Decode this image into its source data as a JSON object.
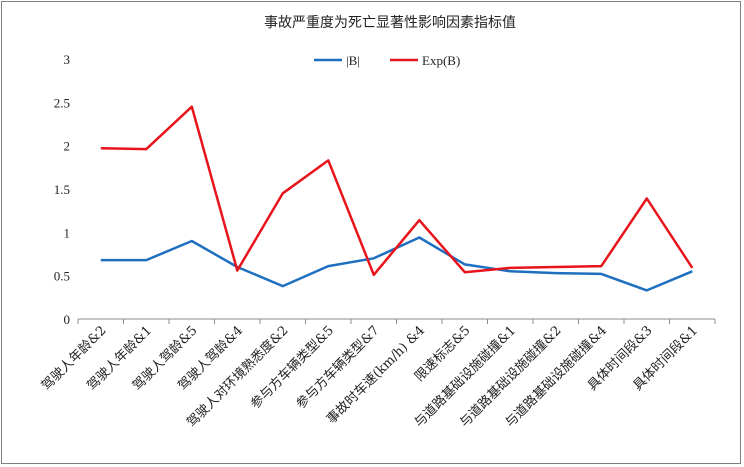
{
  "chart_data": {
    "type": "line",
    "title": "事故严重度为死亡显著性影响因素指标值",
    "categories": [
      "驾驶人年龄&2",
      "驾驶人年龄&1",
      "驾驶人驾龄&5",
      "驾驶人驾龄&4",
      "驾驶人对环境熟悉度&2",
      "参与方车辆类型&5",
      "参与方车辆类型&7",
      "事故时车速(km/h) &4",
      "限速标志&5",
      "与道路基础设施碰撞&1",
      "与道路基础设施碰撞&2",
      "与道路基础设施碰撞&4",
      "具体时间段&3",
      "具体时间段&1"
    ],
    "series": [
      {
        "name": "|B|",
        "color": "#1f6fc0",
        "values": [
          0.68,
          0.68,
          0.9,
          0.6,
          0.38,
          0.61,
          0.7,
          0.94,
          0.63,
          0.55,
          0.53,
          0.52,
          0.33,
          0.55
        ]
      },
      {
        "name": "Exp(B)",
        "color": "#e8141b",
        "values": [
          1.97,
          1.96,
          2.45,
          0.56,
          1.45,
          1.83,
          0.51,
          1.14,
          0.54,
          0.59,
          0.6,
          0.61,
          1.39,
          0.59
        ]
      }
    ],
    "ylim": [
      0,
      3
    ],
    "yticks": [
      "0",
      "0.5",
      "1",
      "1.5",
      "2",
      "2.5",
      "3"
    ],
    "grid": false,
    "legend": "top"
  }
}
